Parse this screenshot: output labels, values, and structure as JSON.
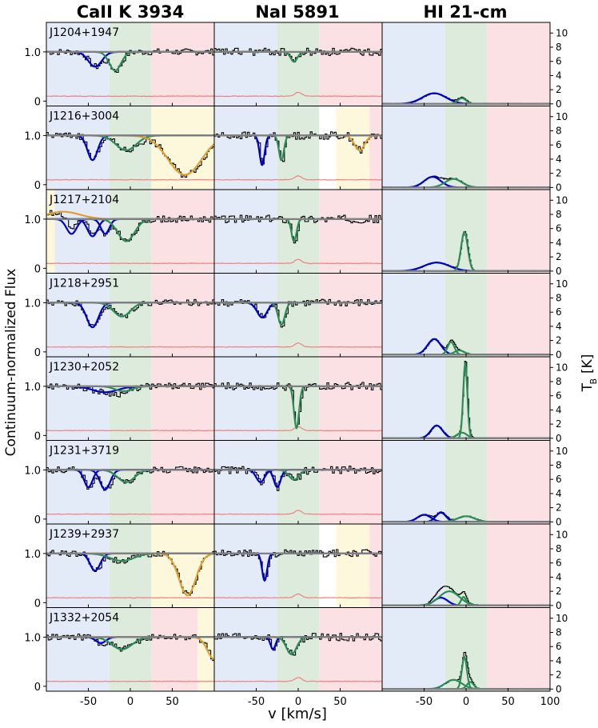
{
  "chart_data": {
    "type": "line",
    "column_titles": [
      "CaII K 3934",
      "NaI 5891",
      "HI 21-cm"
    ],
    "ylabel_left": "Continuum-normalized Flux",
    "ylabel_right": "T",
    "ylabel_right_sub": "B",
    "ylabel_right_unit": "[K]",
    "xlabel": "v [km/s]",
    "xlim": [
      -100,
      100
    ],
    "flux_ylim": [
      -0.1,
      1.6
    ],
    "tb_ylim": [
      -0.3,
      11.5
    ],
    "x_ticks": [
      -50,
      0,
      50
    ],
    "x_ticks_hi": [
      -50,
      0,
      50,
      100
    ],
    "flux_ticks": [
      0,
      1.0
    ],
    "flux_tick_labels": [
      "0",
      "1.0"
    ],
    "tb_ticks": [
      0,
      2,
      4,
      6,
      8,
      10
    ],
    "region_colors": {
      "blue": "#e3ebf9",
      "green": "#dcebdc",
      "red": "#fbe1e3",
      "yellow": "#fdf8dc"
    },
    "series_colors": {
      "data": "#000000",
      "fit_total": "#808080",
      "component_blue": "#0000cc",
      "component_green": "#2e8b57",
      "component_yellow": "#e0a030",
      "error": "#f08080"
    },
    "sightlines": [
      {
        "name": "J1204+1947",
        "regions_ca": [
          [
            -100,
            -25,
            "blue"
          ],
          [
            -25,
            25,
            "green"
          ],
          [
            25,
            100,
            "red"
          ]
        ],
        "regions_na": [
          [
            -100,
            -25,
            "blue"
          ],
          [
            -25,
            25,
            "green"
          ],
          [
            25,
            100,
            "red"
          ]
        ],
        "regions_hi": [
          [
            -100,
            -25,
            "blue"
          ],
          [
            -25,
            25,
            "green"
          ],
          [
            25,
            100,
            "red"
          ]
        ],
        "ca_components": [
          {
            "v": -42,
            "depth": 0.3,
            "sigma": 8,
            "color": "blue"
          },
          {
            "v": -18,
            "depth": 0.38,
            "sigma": 7,
            "color": "green"
          }
        ],
        "na_components": [
          {
            "v": -5,
            "depth": 0.2,
            "sigma": 4,
            "color": "green"
          }
        ],
        "hi_components": [
          {
            "v": -38,
            "amp": 1.5,
            "sigma": 14,
            "color": "blue"
          },
          {
            "v": -5,
            "amp": 0.8,
            "sigma": 5,
            "color": "green"
          }
        ]
      },
      {
        "name": "J1216+3004",
        "regions_ca": [
          [
            -100,
            -25,
            "blue"
          ],
          [
            -25,
            25,
            "green"
          ],
          [
            25,
            100,
            "yellow"
          ]
        ],
        "regions_na": [
          [
            -100,
            -25,
            "blue"
          ],
          [
            -25,
            25,
            "green"
          ],
          [
            45,
            85,
            "yellow"
          ],
          [
            85,
            100,
            "red"
          ]
        ],
        "regions_hi": [
          [
            -100,
            -25,
            "blue"
          ],
          [
            -25,
            25,
            "green"
          ],
          [
            25,
            100,
            "red"
          ]
        ],
        "ca_components": [
          {
            "v": -45,
            "depth": 0.5,
            "sigma": 6,
            "color": "blue"
          },
          {
            "v": -5,
            "depth": 0.3,
            "sigma": 12,
            "color": "green"
          },
          {
            "v": 65,
            "depth": 0.8,
            "sigma": 20,
            "color": "yellow"
          }
        ],
        "na_components": [
          {
            "v": -43,
            "depth": 0.6,
            "sigma": 3,
            "color": "blue"
          },
          {
            "v": -20,
            "depth": 0.5,
            "sigma": 3,
            "color": "green"
          },
          {
            "v": 73,
            "depth": 0.3,
            "sigma": 6,
            "color": "yellow"
          }
        ],
        "hi_components": [
          {
            "v": -40,
            "amp": 1.5,
            "sigma": 10,
            "color": "blue"
          },
          {
            "v": -15,
            "amp": 1.2,
            "sigma": 10,
            "color": "green"
          }
        ]
      },
      {
        "name": "J1217+2104",
        "regions_ca": [
          [
            -100,
            -90,
            "yellow"
          ],
          [
            -90,
            -25,
            "blue"
          ],
          [
            -25,
            25,
            "green"
          ],
          [
            25,
            100,
            "red"
          ]
        ],
        "regions_na": [
          [
            -100,
            -25,
            "blue"
          ],
          [
            -25,
            25,
            "green"
          ],
          [
            25,
            100,
            "red"
          ]
        ],
        "regions_hi": [
          [
            -100,
            -25,
            "blue"
          ],
          [
            -25,
            25,
            "green"
          ],
          [
            25,
            100,
            "red"
          ]
        ],
        "ca_components": [
          {
            "v": -70,
            "depth": 0.3,
            "sigma": 6,
            "color": "blue"
          },
          {
            "v": -45,
            "depth": 0.35,
            "sigma": 6,
            "color": "blue"
          },
          {
            "v": -30,
            "depth": 0.3,
            "sigma": 5,
            "color": "blue"
          },
          {
            "v": -5,
            "depth": 0.45,
            "sigma": 10,
            "color": "green"
          },
          {
            "v": -80,
            "depth": -0.15,
            "sigma": 20,
            "color": "yellow"
          }
        ],
        "na_components": [
          {
            "v": -5,
            "depth": 0.45,
            "sigma": 3,
            "color": "green"
          }
        ],
        "hi_components": [
          {
            "v": -35,
            "amp": 1.2,
            "sigma": 15,
            "color": "blue"
          },
          {
            "v": -2,
            "amp": 5.5,
            "sigma": 4,
            "color": "green"
          }
        ]
      },
      {
        "name": "J1218+2951",
        "regions_ca": [
          [
            -100,
            -25,
            "blue"
          ],
          [
            -25,
            25,
            "green"
          ],
          [
            25,
            100,
            "red"
          ]
        ],
        "regions_na": [
          [
            -100,
            -25,
            "blue"
          ],
          [
            -25,
            25,
            "green"
          ],
          [
            25,
            100,
            "red"
          ]
        ],
        "regions_hi": [
          [
            -100,
            -25,
            "blue"
          ],
          [
            -25,
            25,
            "green"
          ],
          [
            25,
            100,
            "red"
          ]
        ],
        "ca_components": [
          {
            "v": -45,
            "depth": 0.5,
            "sigma": 7,
            "color": "blue"
          },
          {
            "v": -10,
            "depth": 0.28,
            "sigma": 10,
            "color": "green"
          }
        ],
        "na_components": [
          {
            "v": -43,
            "depth": 0.3,
            "sigma": 6,
            "color": "blue"
          },
          {
            "v": -20,
            "depth": 0.45,
            "sigma": 4,
            "color": "green"
          }
        ],
        "hi_components": [
          {
            "v": -38,
            "amp": 2.2,
            "sigma": 8,
            "color": "blue"
          },
          {
            "v": -18,
            "amp": 1.8,
            "sigma": 4,
            "color": "green"
          },
          {
            "v": -8,
            "amp": 0.6,
            "sigma": 6,
            "color": "green"
          }
        ]
      },
      {
        "name": "J1230+2052",
        "regions_ca": [
          [
            -100,
            -25,
            "blue"
          ],
          [
            -25,
            25,
            "green"
          ],
          [
            25,
            100,
            "red"
          ]
        ],
        "regions_na": [
          [
            -100,
            -25,
            "blue"
          ],
          [
            -25,
            25,
            "green"
          ],
          [
            25,
            100,
            "red"
          ]
        ],
        "regions_hi": [
          [
            -100,
            -25,
            "blue"
          ],
          [
            -25,
            25,
            "green"
          ],
          [
            25,
            100,
            "red"
          ]
        ],
        "ca_components": [
          {
            "v": -30,
            "depth": 0.12,
            "sigma": 15,
            "color": "blue"
          },
          {
            "v": -8,
            "depth": 0.1,
            "sigma": 10,
            "color": "green"
          }
        ],
        "na_components": [
          {
            "v": -2,
            "depth": 0.85,
            "sigma": 3,
            "color": "green"
          }
        ],
        "hi_components": [
          {
            "v": -35,
            "amp": 1.8,
            "sigma": 7,
            "color": "blue"
          },
          {
            "v": -1,
            "amp": 10.5,
            "sigma": 2.5,
            "color": "green"
          },
          {
            "v": -5,
            "amp": 0.8,
            "sigma": 6,
            "color": "green"
          }
        ]
      },
      {
        "name": "J1231+3719",
        "regions_ca": [
          [
            -100,
            -25,
            "blue"
          ],
          [
            -25,
            25,
            "green"
          ],
          [
            25,
            100,
            "red"
          ]
        ],
        "regions_na": [
          [
            -100,
            -25,
            "blue"
          ],
          [
            -25,
            25,
            "green"
          ],
          [
            25,
            100,
            "red"
          ]
        ],
        "regions_hi": [
          [
            -100,
            -25,
            "blue"
          ],
          [
            -25,
            25,
            "green"
          ],
          [
            25,
            100,
            "red"
          ]
        ],
        "ca_components": [
          {
            "v": -50,
            "depth": 0.35,
            "sigma": 5,
            "color": "blue"
          },
          {
            "v": -30,
            "depth": 0.4,
            "sigma": 6,
            "color": "blue"
          },
          {
            "v": -5,
            "depth": 0.25,
            "sigma": 10,
            "color": "green"
          }
        ],
        "na_components": [
          {
            "v": -45,
            "depth": 0.25,
            "sigma": 5,
            "color": "blue"
          },
          {
            "v": -25,
            "depth": 0.35,
            "sigma": 4,
            "color": "blue"
          },
          {
            "v": -5,
            "depth": 0.2,
            "sigma": 6,
            "color": "green"
          }
        ],
        "hi_components": [
          {
            "v": -50,
            "amp": 1.0,
            "sigma": 8,
            "color": "blue"
          },
          {
            "v": -30,
            "amp": 1.3,
            "sigma": 6,
            "color": "blue"
          },
          {
            "v": 0,
            "amp": 0.8,
            "sigma": 10,
            "color": "green"
          }
        ]
      },
      {
        "name": "J1239+2937",
        "regions_ca": [
          [
            -100,
            -25,
            "blue"
          ],
          [
            -25,
            25,
            "green"
          ],
          [
            25,
            100,
            "yellow"
          ]
        ],
        "regions_na": [
          [
            -100,
            -25,
            "blue"
          ],
          [
            -25,
            25,
            "green"
          ],
          [
            45,
            85,
            "yellow"
          ],
          [
            85,
            100,
            "red"
          ]
        ],
        "regions_hi": [
          [
            -100,
            -25,
            "blue"
          ],
          [
            -25,
            25,
            "green"
          ],
          [
            25,
            100,
            "red"
          ]
        ],
        "ca_components": [
          {
            "v": -42,
            "depth": 0.35,
            "sigma": 6,
            "color": "blue"
          },
          {
            "v": -10,
            "depth": 0.15,
            "sigma": 14,
            "color": "green"
          },
          {
            "v": 68,
            "depth": 0.85,
            "sigma": 10,
            "color": "yellow"
          }
        ],
        "na_components": [
          {
            "v": -40,
            "depth": 0.55,
            "sigma": 3,
            "color": "blue"
          }
        ],
        "hi_components": [
          {
            "v": -30,
            "amp": 1.1,
            "sigma": 8,
            "color": "blue"
          },
          {
            "v": -20,
            "amp": 2.0,
            "sigma": 12,
            "color": "green"
          },
          {
            "v": -3,
            "amp": 1.2,
            "sigma": 3,
            "color": "green"
          }
        ]
      },
      {
        "name": "J1332+2054",
        "regions_ca": [
          [
            -100,
            -25,
            "blue"
          ],
          [
            -25,
            25,
            "green"
          ],
          [
            25,
            80,
            "red"
          ],
          [
            80,
            100,
            "yellow"
          ]
        ],
        "regions_na": [
          [
            -100,
            -25,
            "blue"
          ],
          [
            -25,
            25,
            "green"
          ],
          [
            25,
            100,
            "red"
          ]
        ],
        "regions_hi": [
          [
            -100,
            -25,
            "blue"
          ],
          [
            -25,
            25,
            "green"
          ],
          [
            25,
            100,
            "red"
          ]
        ],
        "ca_components": [
          {
            "v": -35,
            "depth": 0.12,
            "sigma": 6,
            "color": "blue"
          },
          {
            "v": -10,
            "depth": 0.25,
            "sigma": 12,
            "color": "green"
          },
          {
            "v": 100,
            "depth": 0.45,
            "sigma": 8,
            "color": "yellow"
          }
        ],
        "na_components": [
          {
            "v": -30,
            "depth": 0.25,
            "sigma": 3,
            "color": "blue"
          },
          {
            "v": -8,
            "depth": 0.35,
            "sigma": 6,
            "color": "green"
          }
        ],
        "hi_components": [
          {
            "v": -15,
            "amp": 1.3,
            "sigma": 10,
            "color": "green"
          },
          {
            "v": -2,
            "amp": 4.5,
            "sigma": 3,
            "color": "green"
          },
          {
            "v": 5,
            "amp": 1.0,
            "sigma": 4,
            "color": "green"
          }
        ]
      }
    ]
  }
}
